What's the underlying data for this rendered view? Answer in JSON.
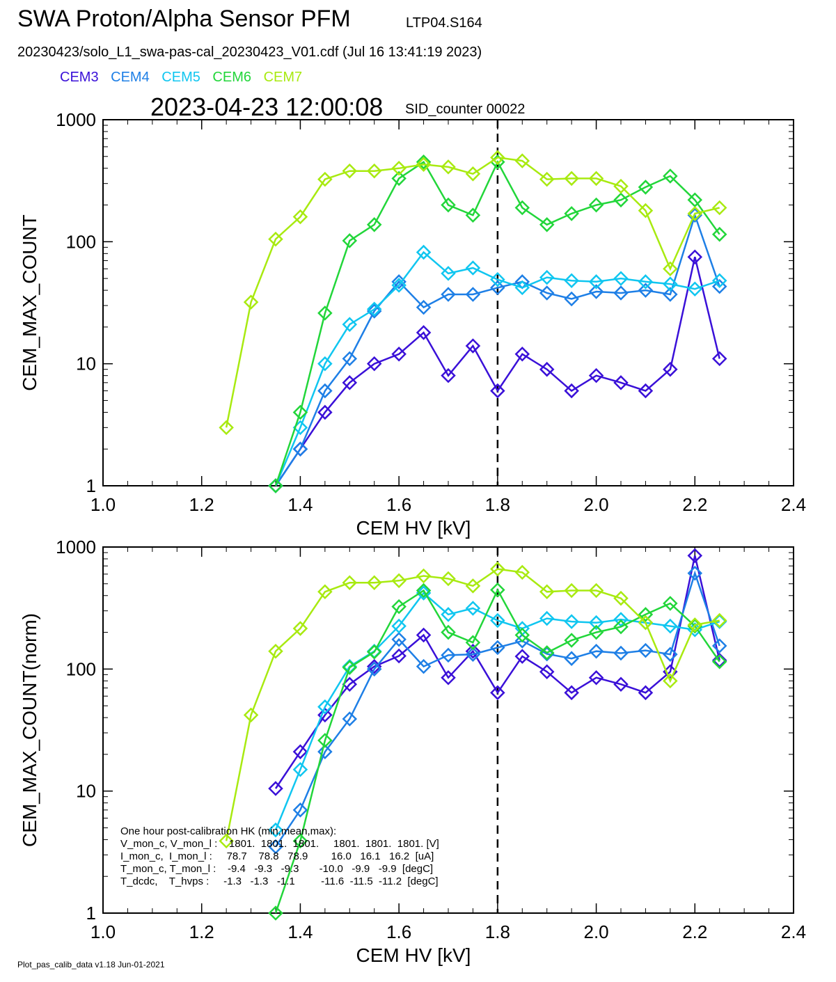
{
  "header": {
    "title": "SWA Proton/Alpha Sensor PFM",
    "subtitle": "LTP04.S164",
    "file_line": "20230423/solo_L1_swa-pas-cal_20230423_V01.cdf  (Jul 16 13:41:19 2023)",
    "timestamp": "2023-04-23 12:00:08",
    "sid_counter": "SID_counter 00022"
  },
  "legend": [
    {
      "label": "CEM3",
      "color": "#3a10d8"
    },
    {
      "label": "CEM4",
      "color": "#1e7fe6"
    },
    {
      "label": "CEM5",
      "color": "#10c6f0"
    },
    {
      "label": "CEM6",
      "color": "#22d63a"
    },
    {
      "label": "CEM7",
      "color": "#a8ea10"
    }
  ],
  "footer": "Plot_pas_calib_data v1.18 Jun-01-2021",
  "hk_box": [
    "One hour post-calibration HK (min,mean,max):",
    "V_mon_c, V_mon_l :    1801.  1801.  1801.     1801.  1801.  1801. [V]",
    "I_mon_c,  I_mon_l :     78.7    78.8   78.9        16.0   16.1   16.2  [uA]",
    "T_mon_c, T_mon_l :    -9.4   -9.3   -9.3       -10.0   -9.9   -9.9  [degC]",
    "T_dcdc,    T_hvps :     -1.3   -1.3   -1.1         -11.6  -11.5  -11.2  [degC]"
  ],
  "chart_data": [
    {
      "type": "line",
      "marker": "diamond",
      "ylabel": "CEM_MAX_COUNT",
      "xlabel": "CEM HV [kV]",
      "xlim": [
        1.0,
        2.4
      ],
      "ylim": [
        1,
        1000
      ],
      "yscale": "log",
      "xticks": [
        "1.0",
        "1.2",
        "1.4",
        "1.6",
        "1.8",
        "2.0",
        "2.2",
        "2.4"
      ],
      "yticks": [
        "1",
        "10",
        "100",
        "1000"
      ],
      "vline_x": 1.8,
      "x": [
        1.25,
        1.3,
        1.35,
        1.4,
        1.45,
        1.5,
        1.55,
        1.6,
        1.65,
        1.7,
        1.75,
        1.8,
        1.85,
        1.9,
        1.95,
        2.0,
        2.05,
        2.1,
        2.15,
        2.2,
        2.25
      ],
      "series": [
        {
          "name": "CEM3",
          "values": [
            null,
            null,
            1,
            2,
            4,
            7,
            10,
            12,
            18,
            8,
            14,
            6,
            12,
            9,
            6,
            8,
            7,
            6,
            9,
            75,
            11
          ]
        },
        {
          "name": "CEM4",
          "values": [
            null,
            null,
            1,
            2,
            6,
            11,
            27,
            47,
            29,
            37,
            37,
            42,
            47,
            38,
            34,
            39,
            38,
            40,
            37,
            165,
            43
          ]
        },
        {
          "name": "CEM5",
          "values": [
            null,
            null,
            1,
            3,
            10,
            21,
            28,
            44,
            82,
            55,
            61,
            49,
            42,
            51,
            48,
            47,
            50,
            47,
            45,
            41,
            48
          ]
        },
        {
          "name": "CEM6",
          "values": [
            null,
            null,
            1,
            4,
            26,
            102,
            138,
            330,
            450,
            200,
            165,
            450,
            190,
            138,
            170,
            200,
            220,
            280,
            345,
            220,
            115
          ]
        },
        {
          "name": "CEM7",
          "values": [
            3,
            32,
            105,
            160,
            325,
            380,
            380,
            400,
            430,
            410,
            360,
            490,
            460,
            325,
            330,
            330,
            285,
            180,
            60,
            170,
            190
          ]
        }
      ]
    },
    {
      "type": "line",
      "marker": "diamond",
      "ylabel": "CEM_MAX_COUNT(norm)",
      "xlabel": "CEM HV [kV]",
      "xlim": [
        1.0,
        2.4
      ],
      "ylim": [
        1,
        1000
      ],
      "yscale": "log",
      "xticks": [
        "1.0",
        "1.2",
        "1.4",
        "1.6",
        "1.8",
        "2.0",
        "2.2",
        "2.4"
      ],
      "yticks": [
        "1",
        "10",
        "100",
        "1000"
      ],
      "vline_x": 1.8,
      "x": [
        1.25,
        1.3,
        1.35,
        1.4,
        1.45,
        1.5,
        1.55,
        1.6,
        1.65,
        1.7,
        1.75,
        1.8,
        1.85,
        1.9,
        1.95,
        2.0,
        2.05,
        2.1,
        2.15,
        2.2,
        2.25
      ],
      "series": [
        {
          "name": "CEM3",
          "values": [
            null,
            null,
            10.5,
            21,
            42,
            75,
            105,
            128,
            190,
            85,
            140,
            64,
            127,
            95,
            64,
            85,
            75,
            64,
            95,
            850,
            118
          ]
        },
        {
          "name": "CEM4",
          "values": [
            null,
            null,
            3.5,
            7,
            21,
            39,
            100,
            175,
            105,
            130,
            132,
            150,
            170,
            133,
            122,
            140,
            135,
            142,
            132,
            610,
            155
          ]
        },
        {
          "name": "CEM5",
          "values": [
            null,
            null,
            4.8,
            15,
            49,
            105,
            140,
            225,
            420,
            280,
            315,
            250,
            215,
            260,
            245,
            240,
            255,
            240,
            225,
            210,
            245
          ]
        },
        {
          "name": "CEM6",
          "values": [
            null,
            null,
            1,
            3.9,
            26,
            103,
            138,
            325,
            440,
            200,
            165,
            445,
            190,
            136,
            172,
            200,
            222,
            280,
            345,
            225,
            115
          ]
        },
        {
          "name": "CEM7",
          "values": [
            3.9,
            42,
            140,
            215,
            430,
            510,
            510,
            530,
            580,
            550,
            480,
            660,
            620,
            430,
            440,
            440,
            380,
            240,
            80,
            230,
            250
          ]
        }
      ]
    }
  ]
}
